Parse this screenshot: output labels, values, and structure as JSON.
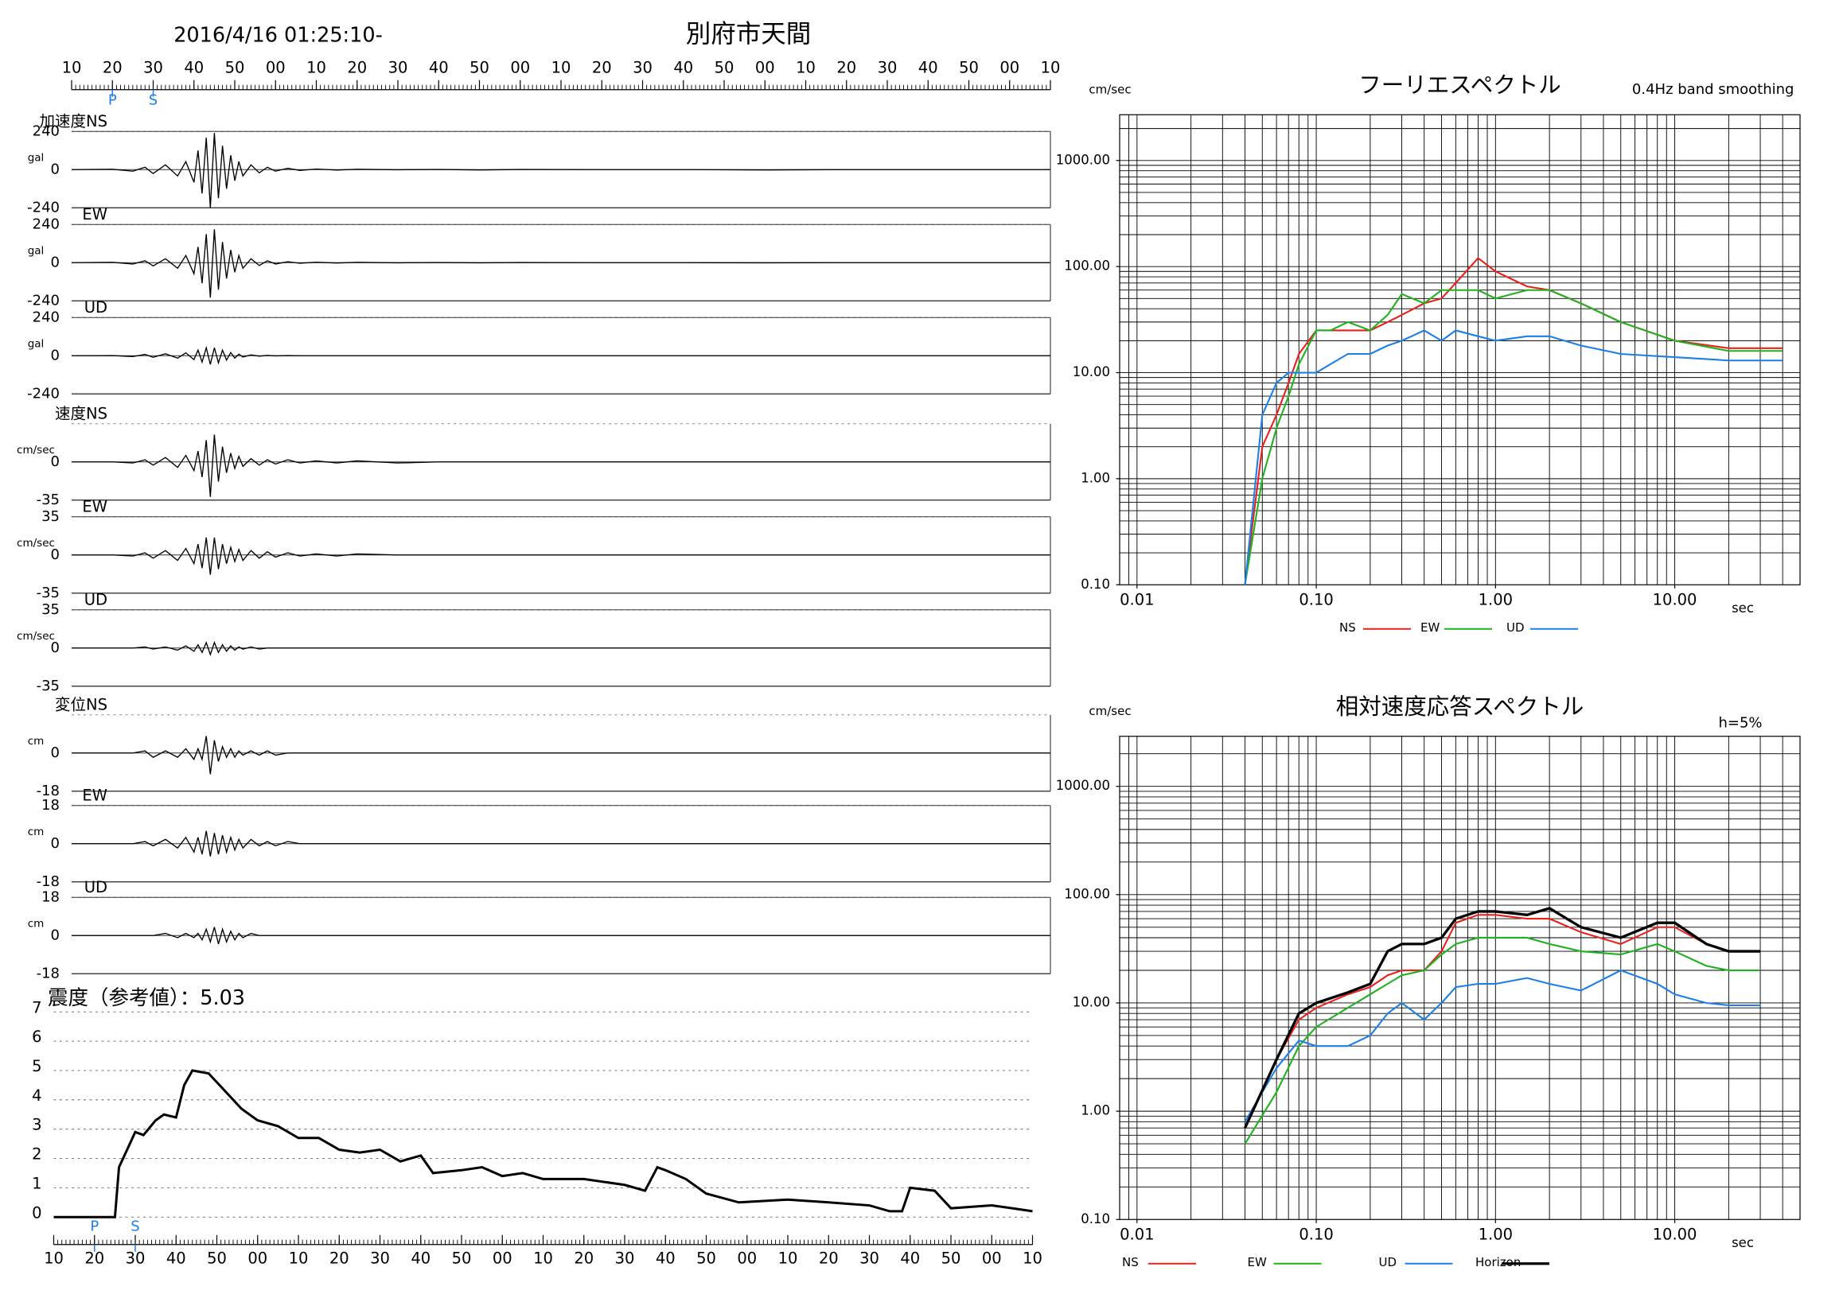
{
  "header": {
    "datetime": "2016/4/16 01:25:10-",
    "station": "別府市天間"
  },
  "chart_data": [
    {
      "type": "waveform",
      "xlim": [
        10,
        250
      ],
      "xticks": [
        10,
        20,
        30,
        40,
        50,
        {
          "value": 60,
          "label": "00"
        },
        {
          "value": 70,
          "label": "10"
        },
        {
          "value": 80,
          "label": "20"
        },
        {
          "value": 90,
          "label": "30"
        },
        {
          "value": 100,
          "label": "40"
        },
        {
          "value": 110,
          "label": "50"
        },
        {
          "value": 120,
          "label": "00"
        },
        {
          "value": 130,
          "label": "10"
        },
        {
          "value": 140,
          "label": "20"
        },
        {
          "value": 150,
          "label": "30"
        },
        {
          "value": 160,
          "label": "40"
        },
        {
          "value": 170,
          "label": "50"
        },
        {
          "value": 180,
          "label": "00"
        },
        {
          "value": 190,
          "label": "10"
        },
        {
          "value": 200,
          "label": "20"
        },
        {
          "value": 210,
          "label": "30"
        },
        {
          "value": 220,
          "label": "40"
        },
        {
          "value": 230,
          "label": "50"
        },
        {
          "value": 240,
          "label": "00"
        },
        {
          "value": 250,
          "label": "10"
        }
      ],
      "markers": [
        {
          "label": "P",
          "x": 20
        },
        {
          "label": "S",
          "x": 30
        }
      ],
      "x": [
        10,
        20,
        25,
        28,
        30,
        33,
        36,
        38,
        40,
        41,
        42,
        43,
        44,
        45,
        46,
        47,
        48,
        49,
        50,
        51,
        52,
        54,
        56,
        58,
        60,
        63,
        66,
        70,
        75,
        80,
        90,
        100,
        110,
        120,
        140,
        160,
        180,
        200,
        220,
        250
      ],
      "panels": [
        {
          "label": "加速度NS",
          "unit": "gal",
          "ylim": [
            -240,
            240
          ],
          "yticks": [
            -240,
            0,
            240
          ],
          "values": [
            0,
            2,
            -10,
            15,
            -25,
            30,
            -40,
            50,
            -80,
            120,
            -150,
            200,
            -240,
            230,
            -180,
            150,
            -120,
            90,
            -70,
            50,
            -40,
            30,
            -20,
            15,
            -10,
            8,
            -5,
            4,
            -3,
            2,
            -1,
            1,
            -2,
            1,
            0,
            0,
            -2,
            0,
            0,
            0
          ]
        },
        {
          "label": "EW",
          "unit": "gal",
          "ylim": [
            -240,
            240
          ],
          "yticks": [
            -240,
            0,
            240
          ],
          "values": [
            0,
            2,
            -8,
            12,
            -20,
            25,
            -35,
            45,
            -70,
            100,
            -130,
            180,
            -220,
            210,
            -170,
            130,
            -100,
            80,
            -60,
            45,
            -35,
            25,
            -18,
            12,
            -8,
            6,
            -4,
            3,
            -2,
            2,
            -1,
            1,
            -1,
            1,
            0,
            0,
            -1,
            0,
            0,
            0
          ]
        },
        {
          "label": "UD",
          "unit": "gal",
          "ylim": [
            -240,
            240
          ],
          "yticks": [
            -240,
            0,
            240
          ],
          "values": [
            0,
            1,
            -5,
            8,
            -10,
            12,
            -15,
            18,
            -25,
            35,
            -40,
            50,
            -55,
            50,
            -45,
            35,
            -28,
            20,
            -15,
            10,
            -8,
            5,
            -3,
            2,
            -1,
            1,
            0,
            0,
            0,
            0,
            0,
            0,
            0,
            0,
            0,
            0,
            0,
            0,
            0,
            0
          ]
        },
        {
          "label": "速度NS",
          "unit": "cm/sec",
          "ylim": [
            -35,
            35
          ],
          "yticks": [
            -35,
            0
          ],
          "values": [
            0,
            0,
            -1,
            2,
            -3,
            4,
            -5,
            6,
            -8,
            10,
            -14,
            20,
            -32,
            25,
            -18,
            14,
            -10,
            8,
            -6,
            5,
            -4,
            3,
            -3,
            2,
            -2,
            2,
            -1,
            1,
            -1,
            1,
            -1,
            0,
            0,
            0,
            0,
            0,
            0,
            0,
            0,
            0
          ]
        },
        {
          "label": "EW",
          "unit": "cm/sec",
          "ylim": [
            -35,
            35
          ],
          "yticks": [
            -35,
            0,
            35
          ],
          "values": [
            0,
            0,
            -1,
            2,
            -3,
            4,
            -5,
            6,
            -8,
            10,
            -12,
            16,
            -18,
            16,
            -13,
            10,
            -8,
            7,
            -6,
            5,
            -5,
            4,
            -3,
            3,
            -2,
            2,
            -1,
            1,
            -1,
            1,
            0,
            0,
            0,
            0,
            0,
            0,
            0,
            0,
            0,
            0
          ]
        },
        {
          "label": "UD",
          "unit": "cm/sec",
          "ylim": [
            -35,
            35
          ],
          "yticks": [
            -35,
            0,
            35
          ],
          "values": [
            0,
            0,
            0,
            1,
            -1,
            1,
            -2,
            2,
            -3,
            3,
            -4,
            5,
            -6,
            5,
            -4,
            3,
            -3,
            2,
            -2,
            1,
            -1,
            1,
            -1,
            0,
            0,
            0,
            0,
            0,
            0,
            0,
            0,
            0,
            0,
            0,
            0,
            0,
            0,
            0,
            0,
            0
          ]
        },
        {
          "label": "変位NS",
          "unit": "cm",
          "ylim": [
            -18,
            18
          ],
          "yticks": [
            -18,
            0
          ],
          "values": [
            0,
            0,
            0,
            1,
            -2,
            1,
            -2,
            2,
            -3,
            2,
            -3,
            8,
            -10,
            6,
            -4,
            3,
            -2,
            2,
            -2,
            1,
            -1,
            1,
            -1,
            1,
            -1,
            0,
            0,
            0,
            0,
            0,
            0,
            0,
            0,
            0,
            0,
            0,
            0,
            0,
            0,
            0
          ]
        },
        {
          "label": "EW",
          "unit": "cm",
          "ylim": [
            -18,
            18
          ],
          "yticks": [
            -18,
            0,
            18
          ],
          "values": [
            0,
            0,
            0,
            1,
            -1,
            2,
            -2,
            3,
            -4,
            3,
            -5,
            6,
            -6,
            5,
            -5,
            4,
            -4,
            3,
            -3,
            2,
            -2,
            2,
            -1,
            1,
            -1,
            1,
            0,
            0,
            0,
            0,
            0,
            0,
            0,
            0,
            0,
            0,
            0,
            0,
            0,
            0
          ]
        },
        {
          "label": "UD",
          "unit": "cm",
          "ylim": [
            -18,
            18
          ],
          "yticks": [
            -18,
            0,
            18
          ],
          "values": [
            0,
            0,
            0,
            0,
            0,
            1,
            -1,
            1,
            -1,
            1,
            -2,
            3,
            -3,
            4,
            -4,
            3,
            -3,
            2,
            -2,
            1,
            -1,
            1,
            0,
            0,
            0,
            0,
            0,
            0,
            0,
            0,
            0,
            0,
            0,
            0,
            0,
            0,
            0,
            0,
            0,
            0
          ]
        }
      ]
    },
    {
      "type": "intensity",
      "title": "震度（参考値）：5.03",
      "xlim": [
        10,
        250
      ],
      "xticks": [
        10,
        20,
        30,
        40,
        50,
        {
          "value": 60,
          "label": "00"
        },
        {
          "value": 70,
          "label": "10"
        },
        {
          "value": 80,
          "label": "20"
        },
        {
          "value": 90,
          "label": "30"
        },
        {
          "value": 100,
          "label": "40"
        },
        {
          "value": 110,
          "label": "50"
        },
        {
          "value": 120,
          "label": "00"
        },
        {
          "value": 130,
          "label": "10"
        },
        {
          "value": 140,
          "label": "20"
        },
        {
          "value": 150,
          "label": "30"
        },
        {
          "value": 160,
          "label": "40"
        },
        {
          "value": 170,
          "label": "50"
        },
        {
          "value": 180,
          "label": "00"
        },
        {
          "value": 190,
          "label": "10"
        },
        {
          "value": 200,
          "label": "20"
        },
        {
          "value": 210,
          "label": "30"
        },
        {
          "value": 220,
          "label": "40"
        },
        {
          "value": 230,
          "label": "50"
        },
        {
          "value": 240,
          "label": "00"
        },
        {
          "value": 250,
          "label": "10"
        }
      ],
      "ylim": [
        0,
        7
      ],
      "yticks": [
        0,
        1,
        2,
        3,
        4,
        5,
        6,
        7
      ],
      "markers": [
        {
          "label": "P",
          "x": 20
        },
        {
          "label": "S",
          "x": 30
        }
      ],
      "x": [
        10,
        25,
        26,
        28,
        30,
        32,
        35,
        37,
        40,
        42,
        44,
        48,
        50,
        52,
        56,
        60,
        65,
        70,
        75,
        80,
        85,
        90,
        95,
        100,
        103,
        110,
        115,
        120,
        125,
        130,
        140,
        150,
        155,
        158,
        160,
        165,
        170,
        178,
        190,
        200,
        210,
        215,
        218,
        220,
        226,
        230,
        240,
        245,
        250
      ],
      "values": [
        0,
        0,
        1.7,
        2.3,
        2.9,
        2.8,
        3.3,
        3.5,
        3.4,
        4.5,
        5,
        4.9,
        4.6,
        4.3,
        3.7,
        3.3,
        3.1,
        2.7,
        2.7,
        2.3,
        2.2,
        2.3,
        1.9,
        2.1,
        1.5,
        1.6,
        1.7,
        1.4,
        1.5,
        1.3,
        1.3,
        1.1,
        0.9,
        1.7,
        1.6,
        1.3,
        0.8,
        0.5,
        0.6,
        0.5,
        0.4,
        0.2,
        0.2,
        1,
        0.9,
        0.3,
        0.4,
        0.3,
        0.2
      ]
    },
    {
      "type": "spectrum",
      "title": "フーリエスペクトル",
      "subtitle": "0.4Hz band smoothing",
      "y_label": "cm/sec",
      "x_label": "sec",
      "log": true,
      "grid": true,
      "xlim": [
        0.008,
        50
      ],
      "ylim": [
        0.1,
        2700
      ],
      "xticks": [
        {
          "value": 0.01,
          "label": "0.01"
        },
        {
          "value": 0.1,
          "label": "0.10"
        },
        {
          "value": 1,
          "label": "1.00"
        },
        {
          "value": 10,
          "label": "10.00"
        }
      ],
      "yticks": [
        {
          "value": 0.1,
          "label": "0.10"
        },
        {
          "value": 1,
          "label": "1.00"
        },
        {
          "value": 10,
          "label": "10.00"
        },
        {
          "value": 100,
          "label": "100.00"
        },
        {
          "value": 1000,
          "label": "1000.00"
        }
      ],
      "x": [
        0.04,
        0.05,
        0.06,
        0.07,
        0.08,
        0.1,
        0.12,
        0.15,
        0.2,
        0.25,
        0.3,
        0.4,
        0.5,
        0.6,
        0.8,
        1,
        1.5,
        2,
        3,
        5,
        10,
        20,
        40
      ],
      "series": [
        {
          "name": "NS",
          "color": "#e8211c",
          "values": [
            0.1,
            2,
            4,
            8,
            15,
            25,
            25,
            25,
            25,
            30,
            35,
            45,
            50,
            70,
            120,
            90,
            65,
            60,
            45,
            30,
            20,
            17,
            17
          ]
        },
        {
          "name": "EW",
          "color": "#1fb21f",
          "values": [
            0.1,
            1,
            3,
            6,
            12,
            25,
            25,
            30,
            25,
            35,
            55,
            45,
            60,
            60,
            60,
            50,
            60,
            60,
            45,
            30,
            20,
            16,
            16
          ]
        },
        {
          "name": "UD",
          "color": "#1c7fe8",
          "values": [
            0.1,
            4,
            8,
            10,
            10,
            10,
            12,
            15,
            15,
            18,
            20,
            25,
            20,
            25,
            22,
            20,
            22,
            22,
            18,
            15,
            14,
            13,
            13
          ]
        }
      ]
    },
    {
      "type": "spectrum",
      "title": "相対速度応答スペクトル",
      "annotation": "h=5%",
      "y_label": "cm/sec",
      "x_label": "sec",
      "log": true,
      "grid": true,
      "xlim": [
        0.008,
        50
      ],
      "ylim": [
        0.1,
        2900
      ],
      "xticks": [
        {
          "value": 0.01,
          "label": "0.01"
        },
        {
          "value": 0.1,
          "label": "0.10"
        },
        {
          "value": 1,
          "label": "1.00"
        },
        {
          "value": 10,
          "label": "10.00"
        }
      ],
      "yticks": [
        {
          "value": 0.1,
          "label": "0.10"
        },
        {
          "value": 1,
          "label": "1.00"
        },
        {
          "value": 10,
          "label": "10.00"
        },
        {
          "value": 100,
          "label": "100.00"
        },
        {
          "value": 1000,
          "label": "1000.00"
        }
      ],
      "x": [
        0.04,
        0.06,
        0.08,
        0.1,
        0.15,
        0.2,
        0.25,
        0.3,
        0.4,
        0.5,
        0.6,
        0.8,
        1,
        1.5,
        2,
        3,
        5,
        8,
        10,
        15,
        20,
        30
      ],
      "series": [
        {
          "name": "NS",
          "color": "#e8211c",
          "values": [
            0.7,
            3,
            7,
            9,
            12,
            14,
            18,
            20,
            20,
            30,
            55,
            65,
            65,
            60,
            60,
            45,
            35,
            50,
            50,
            35,
            30,
            30
          ]
        },
        {
          "name": "EW",
          "color": "#1fb21f",
          "values": [
            0.5,
            1.5,
            4,
            6,
            9,
            12,
            15,
            18,
            20,
            28,
            35,
            40,
            40,
            40,
            35,
            30,
            28,
            35,
            30,
            22,
            20,
            20
          ]
        },
        {
          "name": "UD",
          "color": "#1c7fe8",
          "values": [
            0.8,
            2.5,
            4.5,
            4,
            4,
            5,
            8,
            10,
            7,
            10,
            14,
            15,
            15,
            17,
            15,
            13,
            20,
            15,
            12,
            10,
            9.5,
            9.5
          ]
        },
        {
          "name": "Horizon",
          "color": "#000000",
          "values": [
            0.7,
            3,
            8,
            10,
            12.5,
            15,
            30,
            35,
            35,
            40,
            60,
            70,
            70,
            65,
            75,
            50,
            40,
            55,
            55,
            35,
            30,
            30
          ]
        }
      ]
    }
  ]
}
